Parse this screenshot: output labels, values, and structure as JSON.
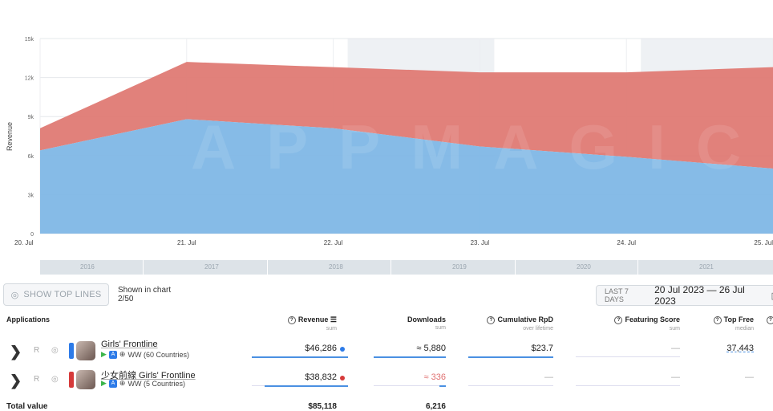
{
  "chart_data": {
    "type": "area",
    "ylabel": "Revenue",
    "x": [
      "20. Jul",
      "21. Jul",
      "22. Jul",
      "23. Jul",
      "24. Jul",
      "25. Jul"
    ],
    "y_ticks": [
      "0",
      "3k",
      "6k",
      "9k",
      "12k",
      "15k"
    ],
    "ylim": [
      0,
      15000
    ],
    "stacked": true,
    "watermark": "APPMAGIC",
    "series": [
      {
        "name": "Girls' Frontline",
        "color": "#7fb7e6",
        "values": [
          6400,
          8800,
          8100,
          6700,
          5900,
          5000
        ]
      },
      {
        "name": "少女前線 Girls' Frontline",
        "color": "#df7a74",
        "values": [
          1700,
          4400,
          4700,
          5700,
          6500,
          7800
        ]
      }
    ]
  },
  "timeline": {
    "years": [
      "2016",
      "2017",
      "2018",
      "2019",
      "2020",
      "2021"
    ]
  },
  "controls": {
    "show_top_lines": "SHOW TOP LINES",
    "shown_in_chart_label": "Shown in chart",
    "shown_in_chart_count": "2/50",
    "date_preset": "LAST 7 DAYS",
    "date_range": "20 Jul 2023 — 26 Jul 2023"
  },
  "table": {
    "columns": {
      "applications": "Applications",
      "revenue": "Revenue",
      "revenue_sub": "sum",
      "downloads": "Downloads",
      "downloads_sub": "sum",
      "cum_rpd": "Cumulative RpD",
      "cum_rpd_sub": "over lifetime",
      "featuring": "Featuring Score",
      "featuring_sub": "sum",
      "top_free": "Top Free",
      "top_free_sub": "median"
    },
    "rows": [
      {
        "name": "Girls' Frontline",
        "r": "R",
        "countries": "WW (60 Countries)",
        "revenue": "$46,286",
        "downloads": "≈ 5,880",
        "cum_rpd": "$23.7",
        "featuring": "—",
        "top_free": "37,443",
        "color": "#2d7be8"
      },
      {
        "name": "少女前線 Girls' Frontline",
        "r": "R",
        "countries": "WW (5 Countries)",
        "revenue": "$38,832",
        "downloads": "≈ 336",
        "cum_rpd": "—",
        "featuring": "—",
        "top_free": "—",
        "color": "#d63a3a"
      }
    ],
    "total_label": "Total value",
    "total_revenue": "$85,118",
    "total_downloads": "6,216"
  }
}
